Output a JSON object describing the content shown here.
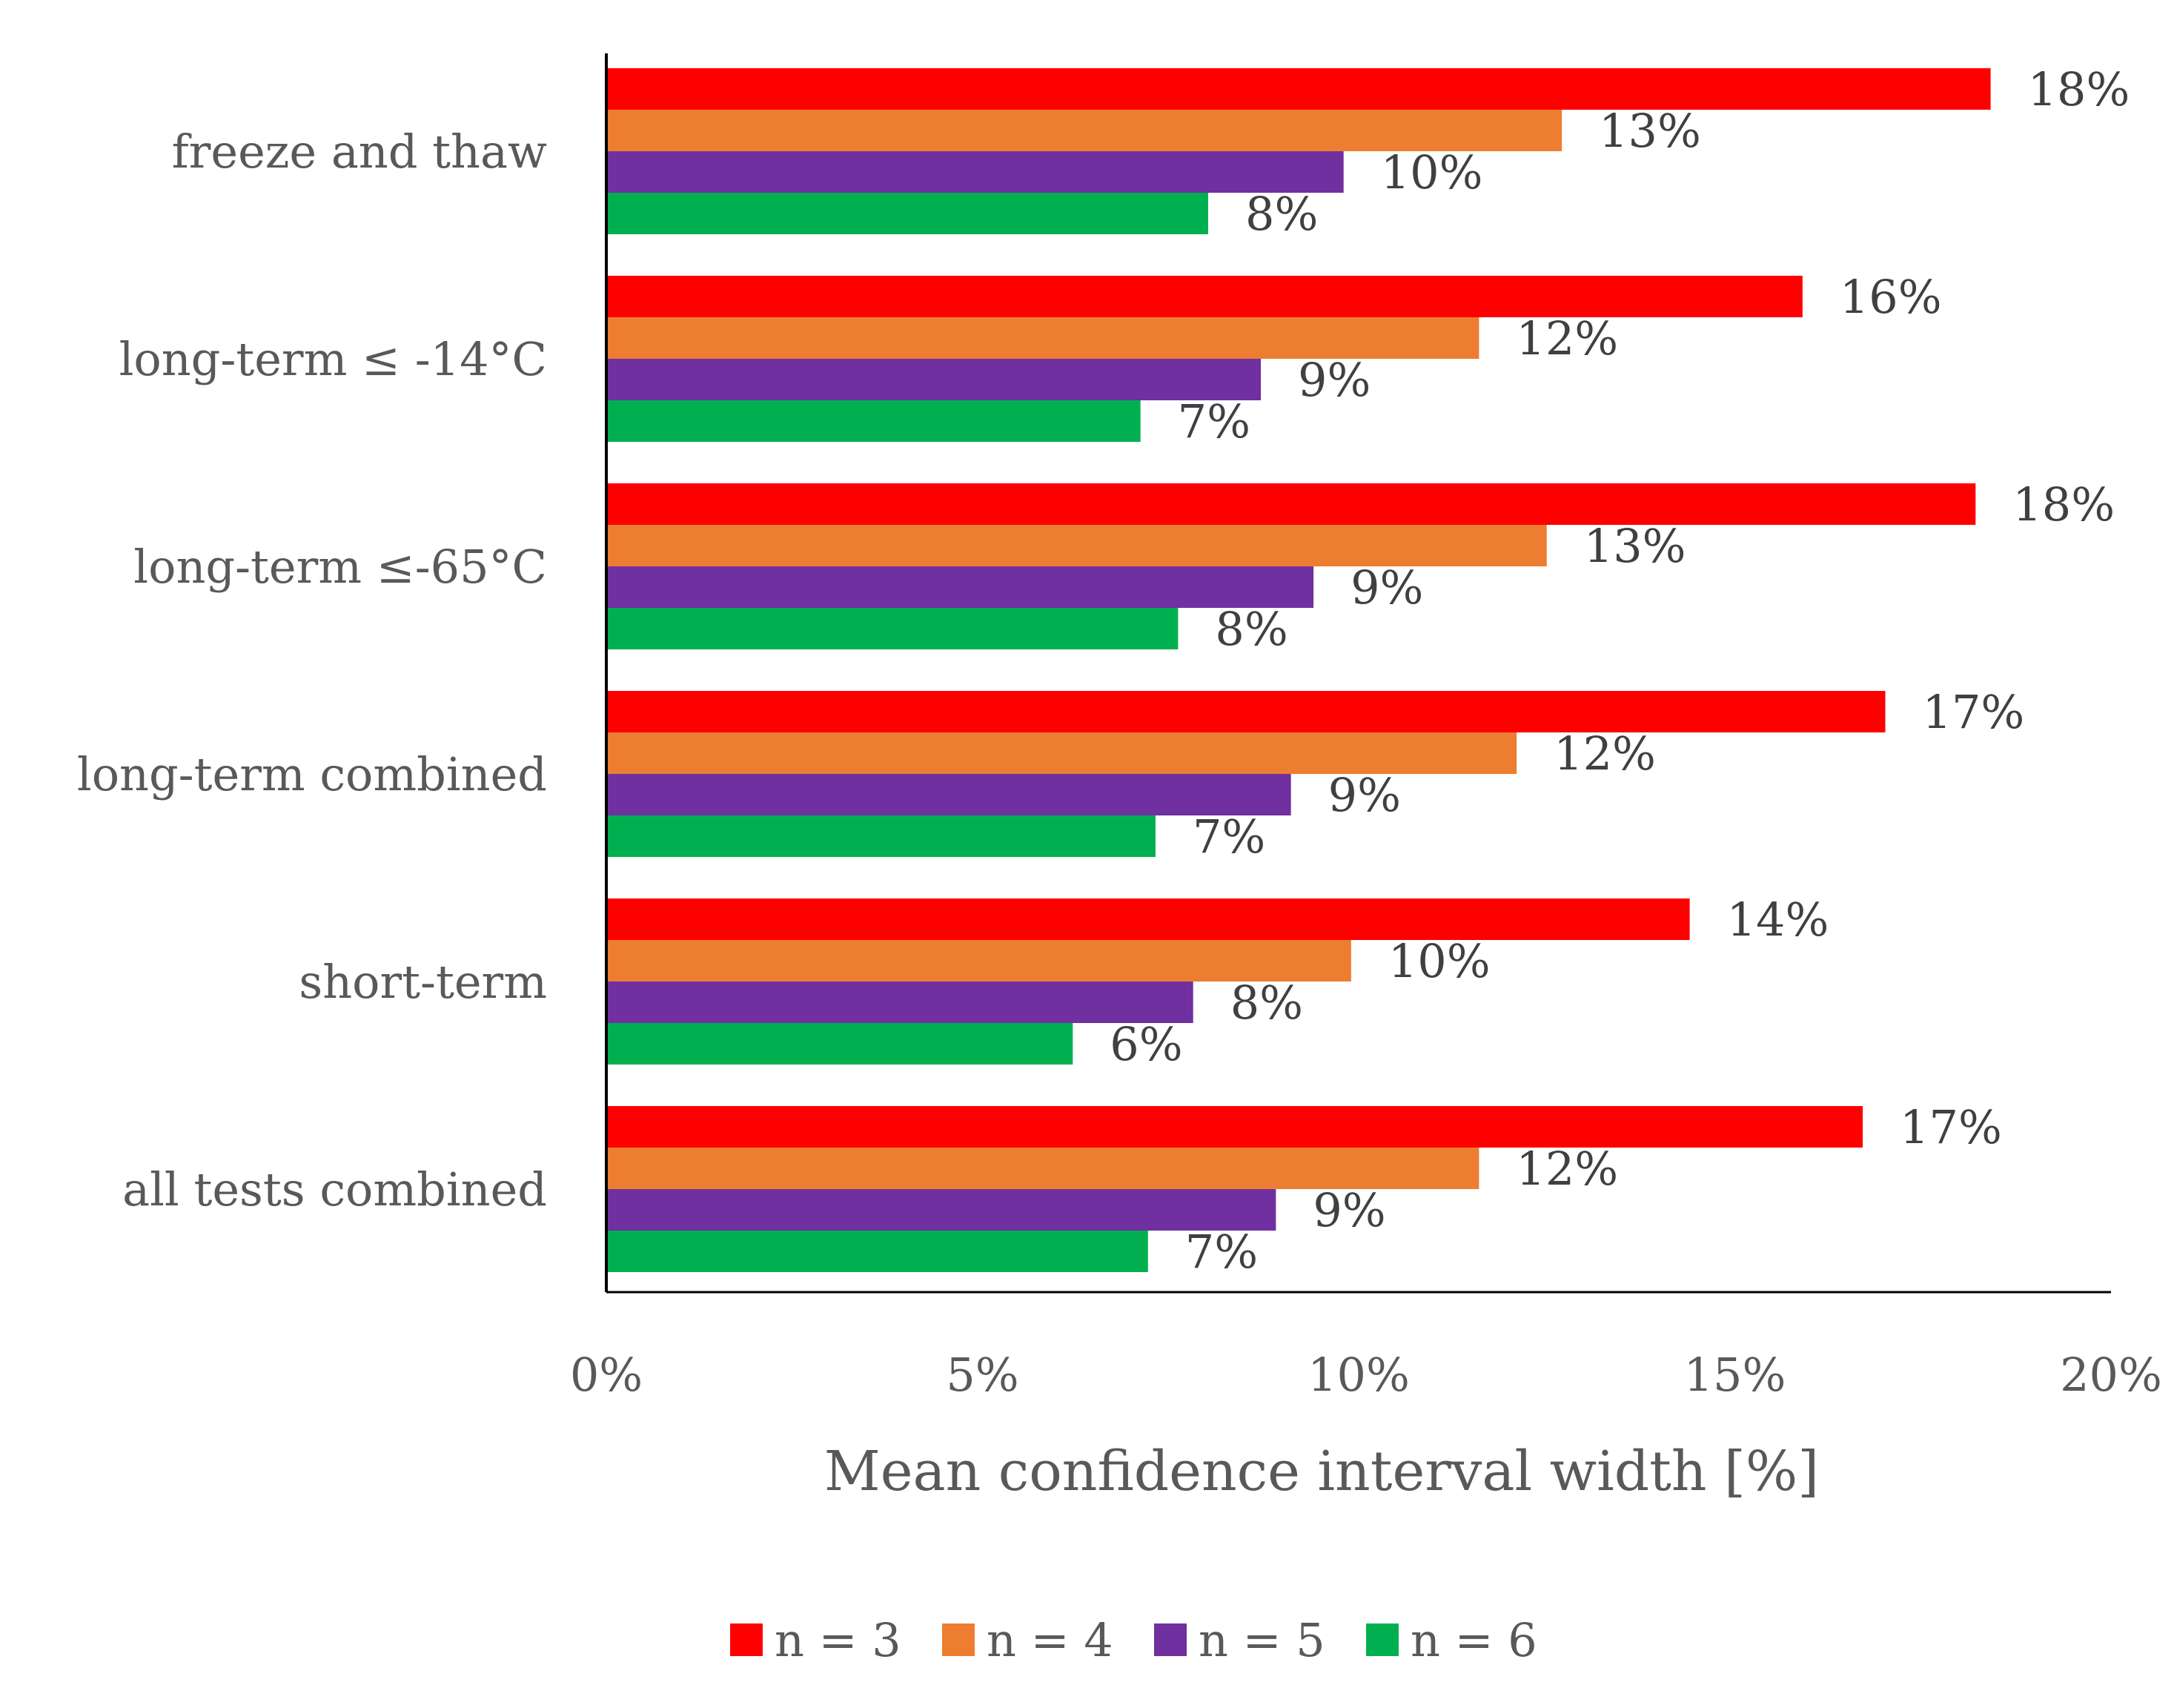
{
  "chart_data": {
    "type": "bar",
    "orientation": "horizontal",
    "title": "",
    "xlabel": "Mean confidence interval width [%]",
    "ylabel": "",
    "xlim": [
      0,
      20
    ],
    "xticks": [
      0,
      5,
      10,
      15,
      20
    ],
    "xtick_labels": [
      "0%",
      "5%",
      "10%",
      "15%",
      "20%"
    ],
    "grid": false,
    "legend_position": "bottom",
    "categories": [
      "freeze and thaw",
      "long-term ≤ -14°C",
      "long-term ≤-65°C",
      "long-term combined",
      "short-term",
      "all tests combined"
    ],
    "series": [
      {
        "name": "n = 3",
        "color": "#FF0000",
        "values": [
          18.4,
          15.9,
          18.2,
          17.0,
          14.4,
          16.7
        ],
        "labels": [
          "18%",
          "16%",
          "18%",
          "17%",
          "14%",
          "17%"
        ]
      },
      {
        "name": "n = 4",
        "color": "#ED7D31",
        "values": [
          12.7,
          11.6,
          12.5,
          12.1,
          9.9,
          11.6
        ],
        "labels": [
          "13%",
          "12%",
          "13%",
          "12%",
          "10%",
          "12%"
        ]
      },
      {
        "name": "n = 5",
        "color": "#7030A0",
        "values": [
          9.8,
          8.7,
          9.4,
          9.1,
          7.8,
          8.9
        ],
        "labels": [
          "10%",
          "9%",
          "9%",
          "9%",
          "8%",
          "9%"
        ]
      },
      {
        "name": "n = 6",
        "color": "#00B050",
        "values": [
          8.0,
          7.1,
          7.6,
          7.3,
          6.2,
          7.2
        ],
        "labels": [
          "8%",
          "7%",
          "8%",
          "7%",
          "6%",
          "7%"
        ]
      }
    ]
  }
}
